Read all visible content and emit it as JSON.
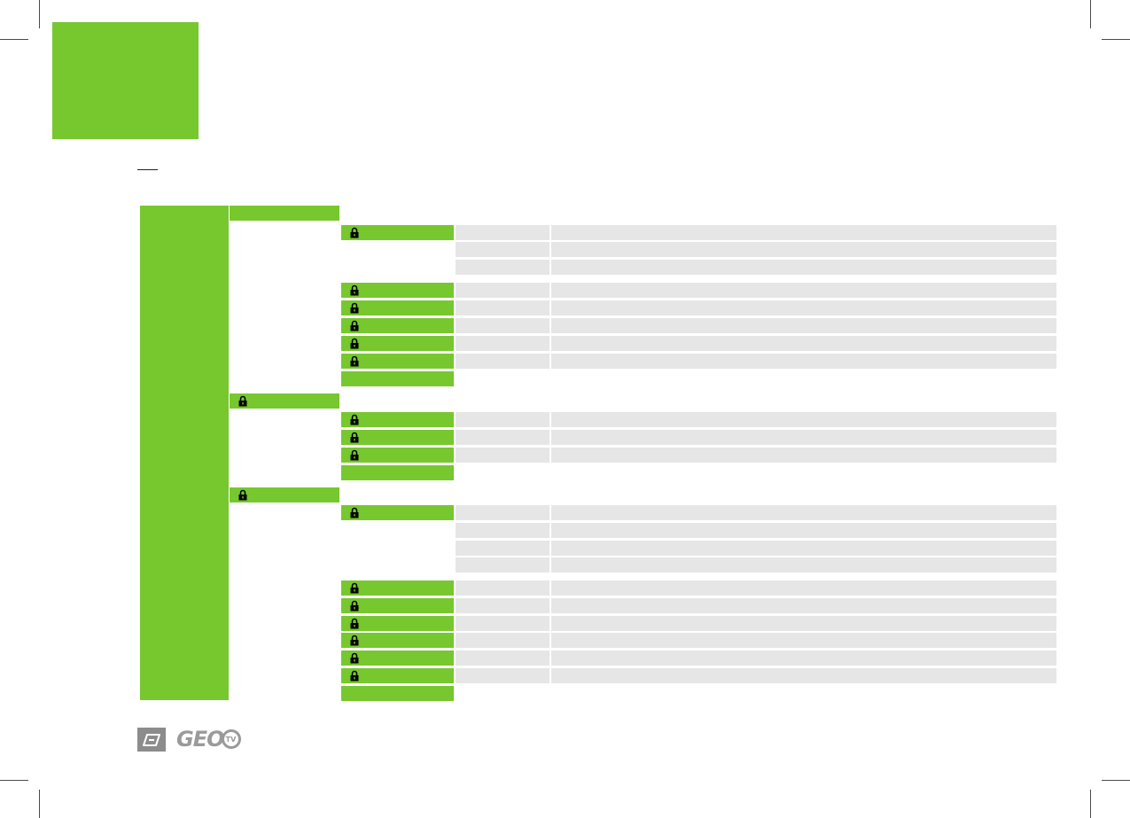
{
  "colors": {
    "accent_green": "#77c72f",
    "row_gray": "#e6e6e6",
    "logo_gray": "#8c8c8c"
  },
  "icons": {
    "lock": "padlock-icon",
    "brand_mark": "brand-device-icon"
  },
  "logo": {
    "brand_text": "GEO",
    "badge_text": "TV"
  }
}
